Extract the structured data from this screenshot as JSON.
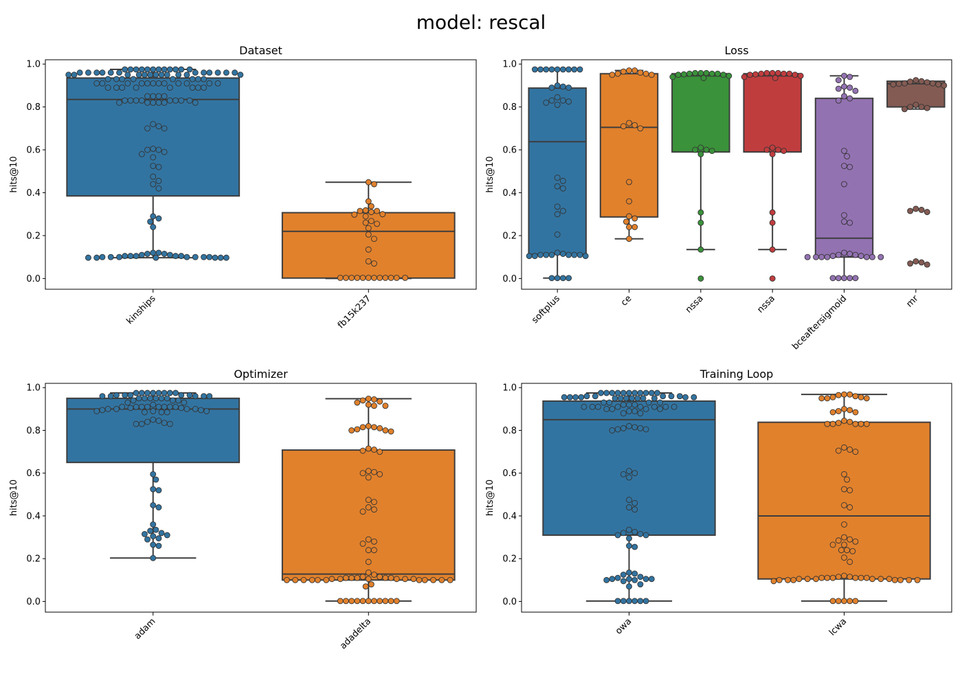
{
  "figure": {
    "title": "model: rescal"
  },
  "colors": {
    "series": [
      "#3274a1",
      "#e1812c",
      "#3a923a",
      "#c03d3e",
      "#9372b2",
      "#845b53"
    ],
    "box_edge": "#3d3d3d"
  },
  "chart_data": [
    {
      "type": "box",
      "title": "Dataset",
      "xlabel": "",
      "ylabel": "hits@10",
      "ylim": [
        -0.05,
        1.02
      ],
      "yticks": [
        "0.0",
        "0.2",
        "0.4",
        "0.6",
        "0.8",
        "1.0"
      ],
      "categories": [
        "kinships",
        "fb15k237"
      ],
      "boxes": [
        {
          "q1": 0.385,
          "median": 0.835,
          "q3": 0.935,
          "whisker_low": 0.097,
          "whisker_high": 0.975
        },
        {
          "q1": 0.002,
          "median": 0.22,
          "q3": 0.307,
          "whisker_low": 0.0,
          "whisker_high": 0.449
        }
      ],
      "points": [
        [
          0.975,
          0.975,
          0.975,
          0.975,
          0.975,
          0.975,
          0.975,
          0.975,
          0.975,
          0.975,
          0.975,
          0.975,
          0.96,
          0.96,
          0.96,
          0.96,
          0.96,
          0.96,
          0.96,
          0.96,
          0.96,
          0.96,
          0.96,
          0.96,
          0.95,
          0.95,
          0.95,
          0.95,
          0.95,
          0.95,
          0.95,
          0.95,
          0.95,
          0.95,
          0.95,
          0.95,
          0.93,
          0.93,
          0.93,
          0.93,
          0.93,
          0.93,
          0.93,
          0.93,
          0.91,
          0.91,
          0.91,
          0.91,
          0.91,
          0.91,
          0.91,
          0.91,
          0.91,
          0.91,
          0.91,
          0.91,
          0.89,
          0.89,
          0.89,
          0.89,
          0.89,
          0.89,
          0.89,
          0.89,
          0.85,
          0.85,
          0.85,
          0.85,
          0.83,
          0.83,
          0.83,
          0.83,
          0.83,
          0.83,
          0.83,
          0.83,
          0.82,
          0.82,
          0.82,
          0.82,
          0.82,
          0.82,
          0.72,
          0.71,
          0.7,
          0.7,
          0.605,
          0.6,
          0.6,
          0.59,
          0.58,
          0.565,
          0.525,
          0.52,
          0.475,
          0.455,
          0.44,
          0.42,
          0.29,
          0.28,
          0.265,
          0.24,
          0.12,
          0.12,
          0.115,
          0.115,
          0.11,
          0.11,
          0.105,
          0.105,
          0.105,
          0.105,
          0.105,
          0.1,
          0.1,
          0.1,
          0.1,
          0.1,
          0.1,
          0.1,
          0.097,
          0.097,
          0.097,
          0.097,
          0.097,
          0.097
        ],
        [
          0.449,
          0.44,
          0.36,
          0.337,
          0.318,
          0.315,
          0.315,
          0.31,
          0.3,
          0.298,
          0.29,
          0.268,
          0.26,
          0.255,
          0.235,
          0.205,
          0.185,
          0.135,
          0.08,
          0.07,
          0.003,
          0.003,
          0.003,
          0.003,
          0.003,
          0.003,
          0.003,
          0.003,
          0.003,
          0.003,
          0.003,
          0.003
        ]
      ]
    },
    {
      "type": "box",
      "title": "Loss",
      "xlabel": "",
      "ylabel": "hits@10",
      "ylim": [
        -0.05,
        1.02
      ],
      "yticks": [
        "0.0",
        "0.2",
        "0.4",
        "0.6",
        "0.8",
        "1.0"
      ],
      "categories": [
        "softplus",
        "ce",
        "nssa",
        "nssa",
        "bceaftersigmoid",
        "mr"
      ],
      "boxes": [
        {
          "q1": 0.112,
          "median": 0.638,
          "q3": 0.888,
          "whisker_low": 0.002,
          "whisker_high": 0.975
        },
        {
          "q1": 0.287,
          "median": 0.705,
          "q3": 0.955,
          "whisker_low": 0.185,
          "whisker_high": 0.97
        },
        {
          "q1": 0.59,
          "median": 0.945,
          "q3": 0.955,
          "whisker_low": 0.135,
          "whisker_high": 0.955
        },
        {
          "q1": 0.59,
          "median": 0.945,
          "q3": 0.955,
          "whisker_low": 0.135,
          "whisker_high": 0.955
        },
        {
          "q1": 0.1,
          "median": 0.188,
          "q3": 0.84,
          "whisker_low": 0.002,
          "whisker_high": 0.945
        },
        {
          "q1": 0.8,
          "median": 0.908,
          "q3": 0.92,
          "whisker_low": 0.79,
          "whisker_high": 0.92
        }
      ],
      "points": [
        [
          0.975,
          0.975,
          0.975,
          0.975,
          0.975,
          0.975,
          0.975,
          0.975,
          0.975,
          0.9,
          0.895,
          0.89,
          0.89,
          0.845,
          0.83,
          0.83,
          0.825,
          0.82,
          0.81,
          0.47,
          0.455,
          0.43,
          0.42,
          0.335,
          0.315,
          0.3,
          0.205,
          0.12,
          0.115,
          0.11,
          0.11,
          0.11,
          0.11,
          0.11,
          0.11,
          0.105,
          0.105,
          0.105,
          0.002,
          0.002,
          0.002,
          0.002
        ],
        [
          0.97,
          0.97,
          0.965,
          0.96,
          0.955,
          0.955,
          0.95,
          0.95,
          0.725,
          0.715,
          0.71,
          0.7,
          0.45,
          0.36,
          0.29,
          0.28,
          0.265,
          0.24,
          0.24,
          0.185
        ],
        [
          0.958,
          0.958,
          0.958,
          0.955,
          0.955,
          0.955,
          0.952,
          0.95,
          0.95,
          0.945,
          0.94,
          0.935,
          0.61,
          0.6,
          0.6,
          0.595,
          0.58,
          0.308,
          0.26,
          0.135,
          0.0
        ],
        [
          0.958,
          0.958,
          0.958,
          0.955,
          0.955,
          0.955,
          0.952,
          0.95,
          0.95,
          0.945,
          0.94,
          0.935,
          0.61,
          0.6,
          0.6,
          0.595,
          0.58,
          0.308,
          0.26,
          0.135,
          0.0
        ],
        [
          0.945,
          0.94,
          0.925,
          0.895,
          0.89,
          0.885,
          0.875,
          0.85,
          0.84,
          0.83,
          0.595,
          0.57,
          0.525,
          0.52,
          0.44,
          0.295,
          0.265,
          0.26,
          0.12,
          0.115,
          0.11,
          0.11,
          0.105,
          0.105,
          0.1,
          0.1,
          0.1,
          0.1,
          0.1,
          0.1,
          0.1,
          0.002,
          0.002,
          0.002,
          0.002,
          0.002
        ],
        [
          0.925,
          0.92,
          0.918,
          0.915,
          0.91,
          0.91,
          0.908,
          0.905,
          0.905,
          0.9,
          0.81,
          0.8,
          0.8,
          0.795,
          0.79,
          0.325,
          0.32,
          0.315,
          0.31,
          0.08,
          0.075,
          0.07,
          0.065
        ]
      ]
    },
    {
      "type": "box",
      "title": "Optimizer",
      "xlabel": "",
      "ylabel": "hits@10",
      "ylim": [
        -0.05,
        1.02
      ],
      "yticks": [
        "0.0",
        "0.2",
        "0.4",
        "0.6",
        "0.8",
        "1.0"
      ],
      "categories": [
        "adam",
        "adadelta"
      ],
      "boxes": [
        {
          "q1": 0.65,
          "median": 0.9,
          "q3": 0.95,
          "whisker_low": 0.203,
          "whisker_high": 0.975
        },
        {
          "q1": 0.1,
          "median": 0.128,
          "q3": 0.708,
          "whisker_low": 0.002,
          "whisker_high": 0.948
        }
      ],
      "points": [
        [
          0.975,
          0.975,
          0.975,
          0.975,
          0.975,
          0.975,
          0.975,
          0.975,
          0.965,
          0.965,
          0.965,
          0.965,
          0.965,
          0.96,
          0.96,
          0.96,
          0.96,
          0.96,
          0.95,
          0.95,
          0.95,
          0.95,
          0.95,
          0.95,
          0.94,
          0.94,
          0.94,
          0.93,
          0.93,
          0.92,
          0.91,
          0.91,
          0.91,
          0.91,
          0.91,
          0.91,
          0.91,
          0.91,
          0.905,
          0.905,
          0.9,
          0.9,
          0.9,
          0.9,
          0.895,
          0.895,
          0.89,
          0.89,
          0.89,
          0.885,
          0.885,
          0.885,
          0.85,
          0.845,
          0.84,
          0.835,
          0.83,
          0.83,
          0.83,
          0.595,
          0.57,
          0.525,
          0.52,
          0.45,
          0.44,
          0.36,
          0.335,
          0.33,
          0.32,
          0.315,
          0.31,
          0.305,
          0.295,
          0.29,
          0.265,
          0.26,
          0.203
        ],
        [
          0.948,
          0.945,
          0.94,
          0.935,
          0.93,
          0.92,
          0.915,
          0.915,
          0.82,
          0.815,
          0.815,
          0.81,
          0.805,
          0.8,
          0.8,
          0.795,
          0.715,
          0.71,
          0.705,
          0.7,
          0.61,
          0.605,
          0.6,
          0.595,
          0.58,
          0.475,
          0.465,
          0.44,
          0.43,
          0.42,
          0.29,
          0.28,
          0.27,
          0.24,
          0.24,
          0.185,
          0.135,
          0.125,
          0.115,
          0.115,
          0.11,
          0.11,
          0.11,
          0.11,
          0.11,
          0.105,
          0.105,
          0.105,
          0.105,
          0.105,
          0.105,
          0.1,
          0.1,
          0.1,
          0.1,
          0.1,
          0.1,
          0.1,
          0.1,
          0.1,
          0.1,
          0.1,
          0.08,
          0.07,
          0.002,
          0.002,
          0.002,
          0.002,
          0.002,
          0.002,
          0.002,
          0.002,
          0.002,
          0.002,
          0.002
        ]
      ]
    },
    {
      "type": "box",
      "title": "Training Loop",
      "xlabel": "",
      "ylabel": "hits@10",
      "ylim": [
        -0.05,
        1.02
      ],
      "yticks": [
        "0.0",
        "0.2",
        "0.4",
        "0.6",
        "0.8",
        "1.0"
      ],
      "categories": [
        "owa",
        "lcwa"
      ],
      "boxes": [
        {
          "q1": 0.31,
          "median": 0.85,
          "q3": 0.937,
          "whisker_low": 0.002,
          "whisker_high": 0.975
        },
        {
          "q1": 0.105,
          "median": 0.4,
          "q3": 0.838,
          "whisker_low": 0.002,
          "whisker_high": 0.968
        }
      ],
      "points": [
        [
          0.975,
          0.975,
          0.975,
          0.975,
          0.975,
          0.975,
          0.975,
          0.975,
          0.975,
          0.975,
          0.975,
          0.96,
          0.96,
          0.96,
          0.96,
          0.96,
          0.955,
          0.955,
          0.955,
          0.955,
          0.955,
          0.955,
          0.95,
          0.95,
          0.95,
          0.95,
          0.95,
          0.95,
          0.95,
          0.93,
          0.93,
          0.93,
          0.93,
          0.92,
          0.92,
          0.92,
          0.91,
          0.91,
          0.91,
          0.91,
          0.91,
          0.91,
          0.91,
          0.91,
          0.9,
          0.9,
          0.9,
          0.9,
          0.89,
          0.89,
          0.88,
          0.88,
          0.82,
          0.815,
          0.81,
          0.81,
          0.805,
          0.805,
          0.8,
          0.61,
          0.6,
          0.595,
          0.58,
          0.475,
          0.46,
          0.44,
          0.43,
          0.335,
          0.325,
          0.32,
          0.315,
          0.31,
          0.31,
          0.295,
          0.26,
          0.255,
          0.135,
          0.13,
          0.125,
          0.115,
          0.11,
          0.105,
          0.105,
          0.105,
          0.105,
          0.1,
          0.1,
          0.095,
          0.08,
          0.07,
          0.002,
          0.002,
          0.002,
          0.002,
          0.002,
          0.002
        ],
        [
          0.968,
          0.968,
          0.965,
          0.96,
          0.955,
          0.955,
          0.95,
          0.95,
          0.95,
          0.9,
          0.895,
          0.89,
          0.885,
          0.885,
          0.845,
          0.84,
          0.835,
          0.83,
          0.83,
          0.83,
          0.83,
          0.83,
          0.72,
          0.71,
          0.705,
          0.7,
          0.595,
          0.57,
          0.525,
          0.52,
          0.45,
          0.44,
          0.36,
          0.3,
          0.29,
          0.285,
          0.28,
          0.265,
          0.265,
          0.24,
          0.24,
          0.235,
          0.205,
          0.185,
          0.12,
          0.115,
          0.115,
          0.11,
          0.11,
          0.11,
          0.11,
          0.11,
          0.11,
          0.105,
          0.105,
          0.105,
          0.105,
          0.105,
          0.105,
          0.1,
          0.1,
          0.1,
          0.1,
          0.1,
          0.1,
          0.1,
          0.095,
          0.002,
          0.002,
          0.002,
          0.002,
          0.002
        ]
      ]
    }
  ]
}
